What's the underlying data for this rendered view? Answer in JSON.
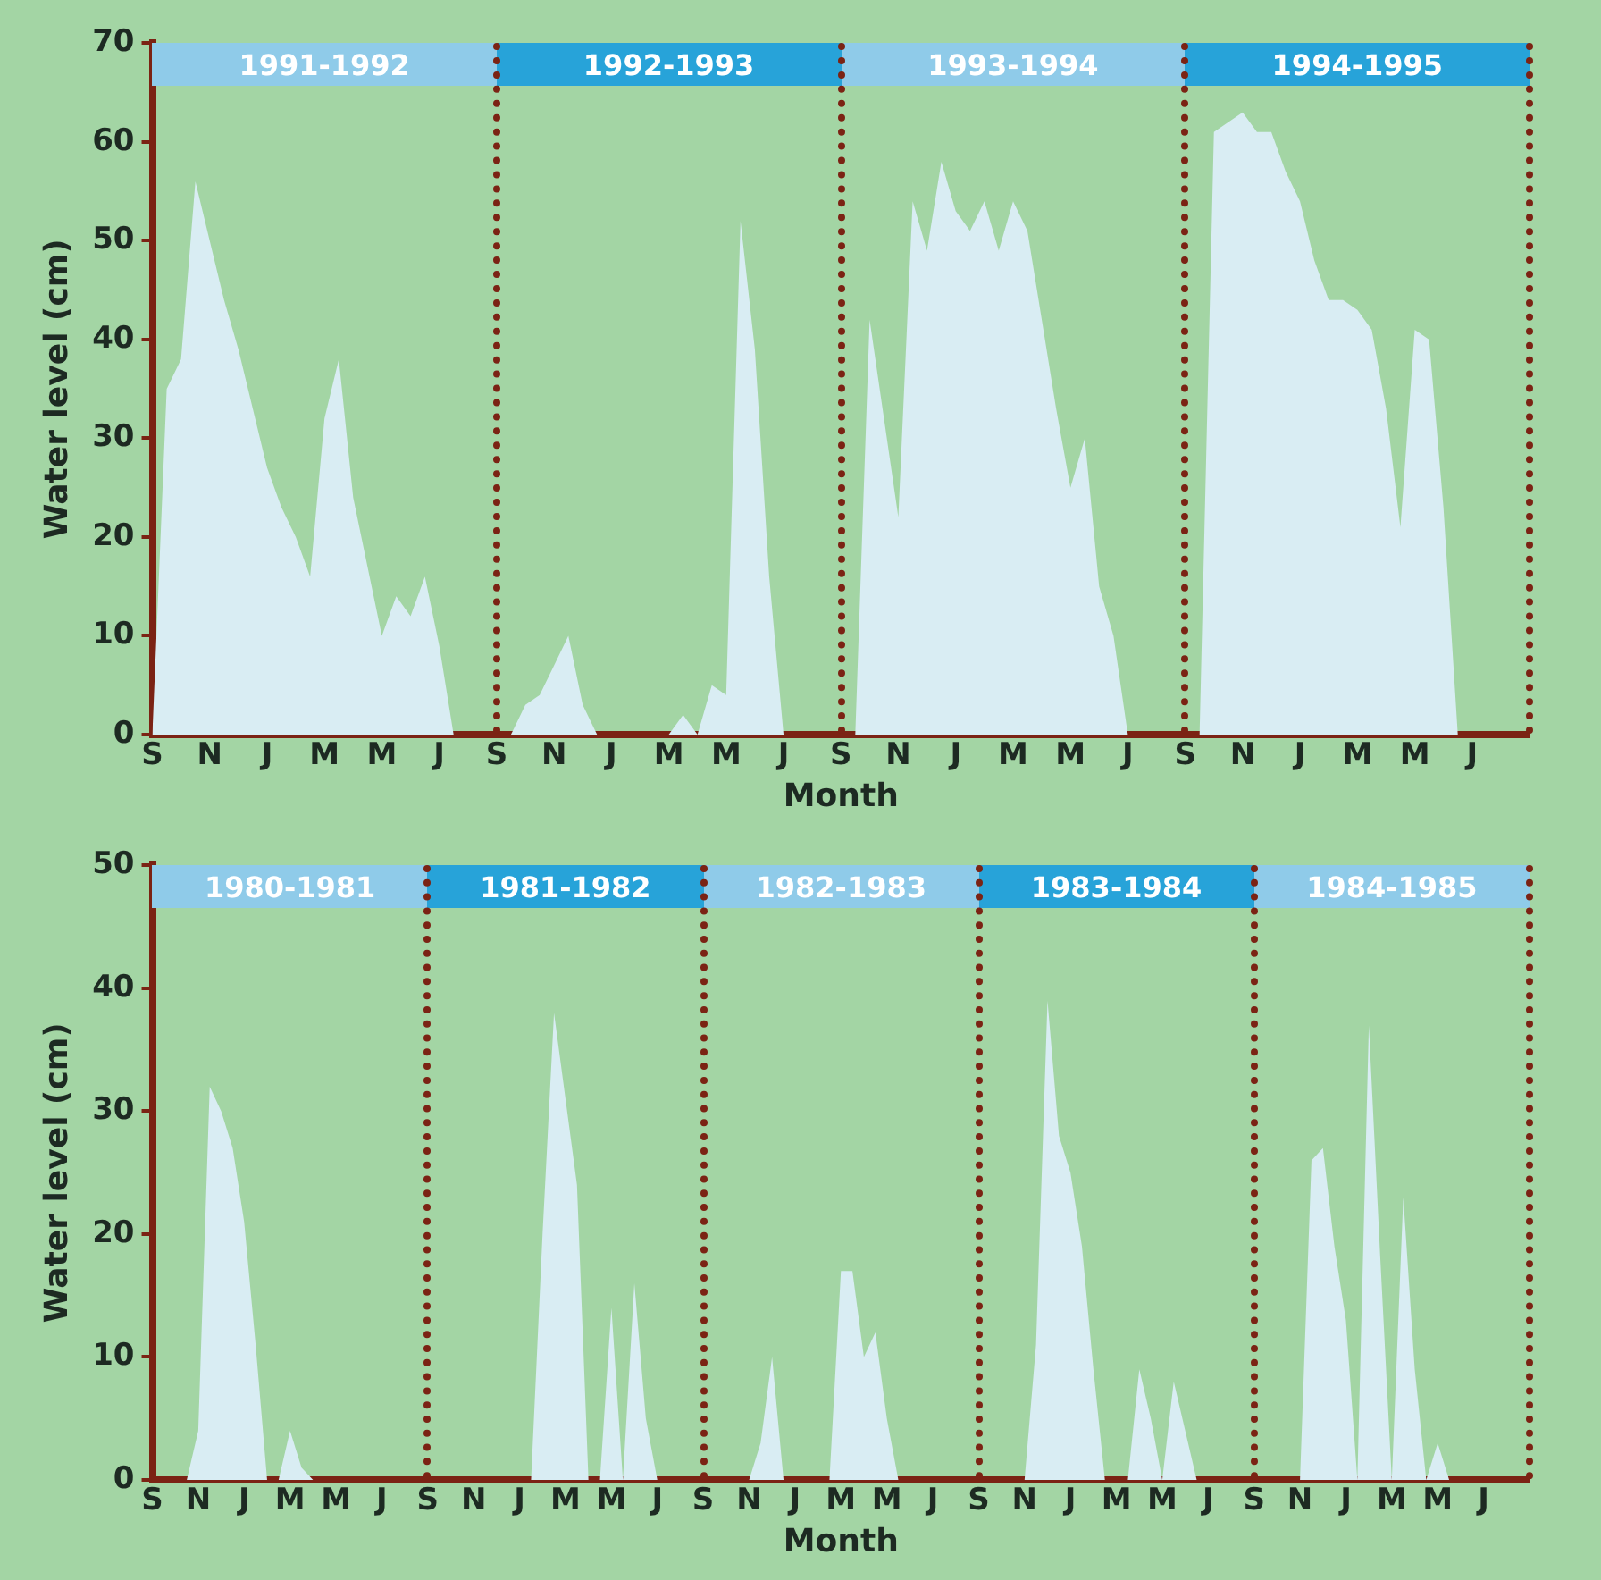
{
  "chart_data": [
    {
      "type": "area",
      "xlabel": "Month",
      "ylabel": "Water level (cm)",
      "ylim": [
        0,
        70
      ],
      "yticks": [
        0,
        10,
        20,
        30,
        40,
        50,
        60,
        70
      ],
      "categories": [
        "S",
        null,
        null,
        null,
        "N",
        null,
        null,
        null,
        "J",
        null,
        null,
        null,
        "M",
        null,
        null,
        null,
        "M",
        null,
        null,
        null,
        "J",
        null,
        null,
        null,
        "S",
        null,
        null,
        null,
        "N",
        null,
        null,
        null,
        "J",
        null,
        null,
        null,
        "M",
        null,
        null,
        null,
        "M",
        null,
        null,
        null,
        "J",
        null,
        null,
        null,
        "S",
        null,
        null,
        null,
        "N",
        null,
        null,
        null,
        "J",
        null,
        null,
        null,
        "M",
        null,
        null,
        null,
        "M",
        null,
        null,
        null,
        "J",
        null,
        null,
        null,
        "S",
        null,
        null,
        null,
        "N",
        null,
        null,
        null,
        "J",
        null,
        null,
        null,
        "M",
        null,
        null,
        null,
        "M",
        null,
        null,
        null,
        "J",
        null,
        null,
        null
      ],
      "series": [
        {
          "color": "#d9edf3",
          "values": [
            0,
            35,
            38,
            56,
            50,
            44,
            39,
            33,
            27,
            23,
            20,
            16,
            32,
            38,
            24,
            17,
            10,
            14,
            12,
            16,
            9,
            0,
            0,
            0,
            0,
            0,
            3,
            4,
            7,
            10,
            3,
            0,
            0,
            0,
            0,
            0,
            0,
            2,
            0,
            5,
            4,
            52,
            39,
            16,
            0,
            0,
            0,
            0,
            0,
            0,
            42,
            32,
            22,
            54,
            49,
            58,
            53,
            51,
            54,
            49,
            54,
            51,
            42,
            33,
            25,
            30,
            15,
            10,
            0,
            0,
            0,
            0,
            0,
            0,
            61,
            62,
            63,
            61,
            61,
            57,
            54,
            48,
            44,
            44,
            43,
            41,
            33,
            21,
            41,
            40,
            23,
            0,
            0,
            0,
            0,
            0
          ]
        }
      ],
      "annotations": [
        "1991-1992",
        "1992-1993",
        "1993-1994",
        "1994-1995"
      ],
      "grid": false,
      "legend": false,
      "marker": "none"
    },
    {
      "type": "area",
      "xlabel": "Month",
      "ylabel": "Water level (cm)",
      "ylim": [
        0,
        50
      ],
      "yticks": [
        0,
        10,
        20,
        30,
        40,
        50
      ],
      "categories": [
        "S",
        null,
        null,
        null,
        "N",
        null,
        null,
        null,
        "J",
        null,
        null,
        null,
        "M",
        null,
        null,
        null,
        "M",
        null,
        null,
        null,
        "J",
        null,
        null,
        null,
        "S",
        null,
        null,
        null,
        "N",
        null,
        null,
        null,
        "J",
        null,
        null,
        null,
        "M",
        null,
        null,
        null,
        "M",
        null,
        null,
        null,
        "J",
        null,
        null,
        null,
        "S",
        null,
        null,
        null,
        "N",
        null,
        null,
        null,
        "J",
        null,
        null,
        null,
        "M",
        null,
        null,
        null,
        "M",
        null,
        null,
        null,
        "J",
        null,
        null,
        null,
        "S",
        null,
        null,
        null,
        "N",
        null,
        null,
        null,
        "J",
        null,
        null,
        null,
        "M",
        null,
        null,
        null,
        "M",
        null,
        null,
        null,
        "J",
        null,
        null,
        null,
        "S",
        null,
        null,
        null,
        "N",
        null,
        null,
        null,
        "J",
        null,
        null,
        null,
        "M",
        null,
        null,
        null,
        "M",
        null,
        null,
        null,
        "J",
        null,
        null,
        null
      ],
      "series": [
        {
          "color": "#d9edf3",
          "values": [
            0,
            0,
            0,
            0,
            4,
            32,
            30,
            27,
            21,
            11,
            0,
            0,
            4,
            1,
            0,
            0,
            0,
            0,
            0,
            0,
            0,
            0,
            0,
            0,
            0,
            0,
            0,
            0,
            0,
            0,
            0,
            0,
            0,
            0,
            20,
            38,
            31,
            24,
            0,
            0,
            14,
            0,
            16,
            5,
            0,
            0,
            0,
            0,
            0,
            0,
            0,
            0,
            0,
            3,
            10,
            0,
            0,
            0,
            0,
            0,
            17,
            17,
            10,
            12,
            5,
            0,
            0,
            0,
            0,
            0,
            0,
            0,
            0,
            0,
            0,
            0,
            0,
            11,
            39,
            28,
            25,
            19,
            9,
            0,
            0,
            0,
            9,
            5,
            0,
            8,
            4,
            0,
            0,
            0,
            0,
            0,
            0,
            0,
            0,
            0,
            0,
            26,
            27,
            19,
            13,
            0,
            37,
            18,
            0,
            23,
            9,
            0,
            3,
            0,
            0,
            0,
            0,
            0,
            0,
            0
          ]
        }
      ],
      "annotations": [
        "1980-1981",
        "1981-1982",
        "1982-1983",
        "1983-1984",
        "1984-1985"
      ],
      "grid": false,
      "legend": false,
      "marker": "none"
    }
  ]
}
